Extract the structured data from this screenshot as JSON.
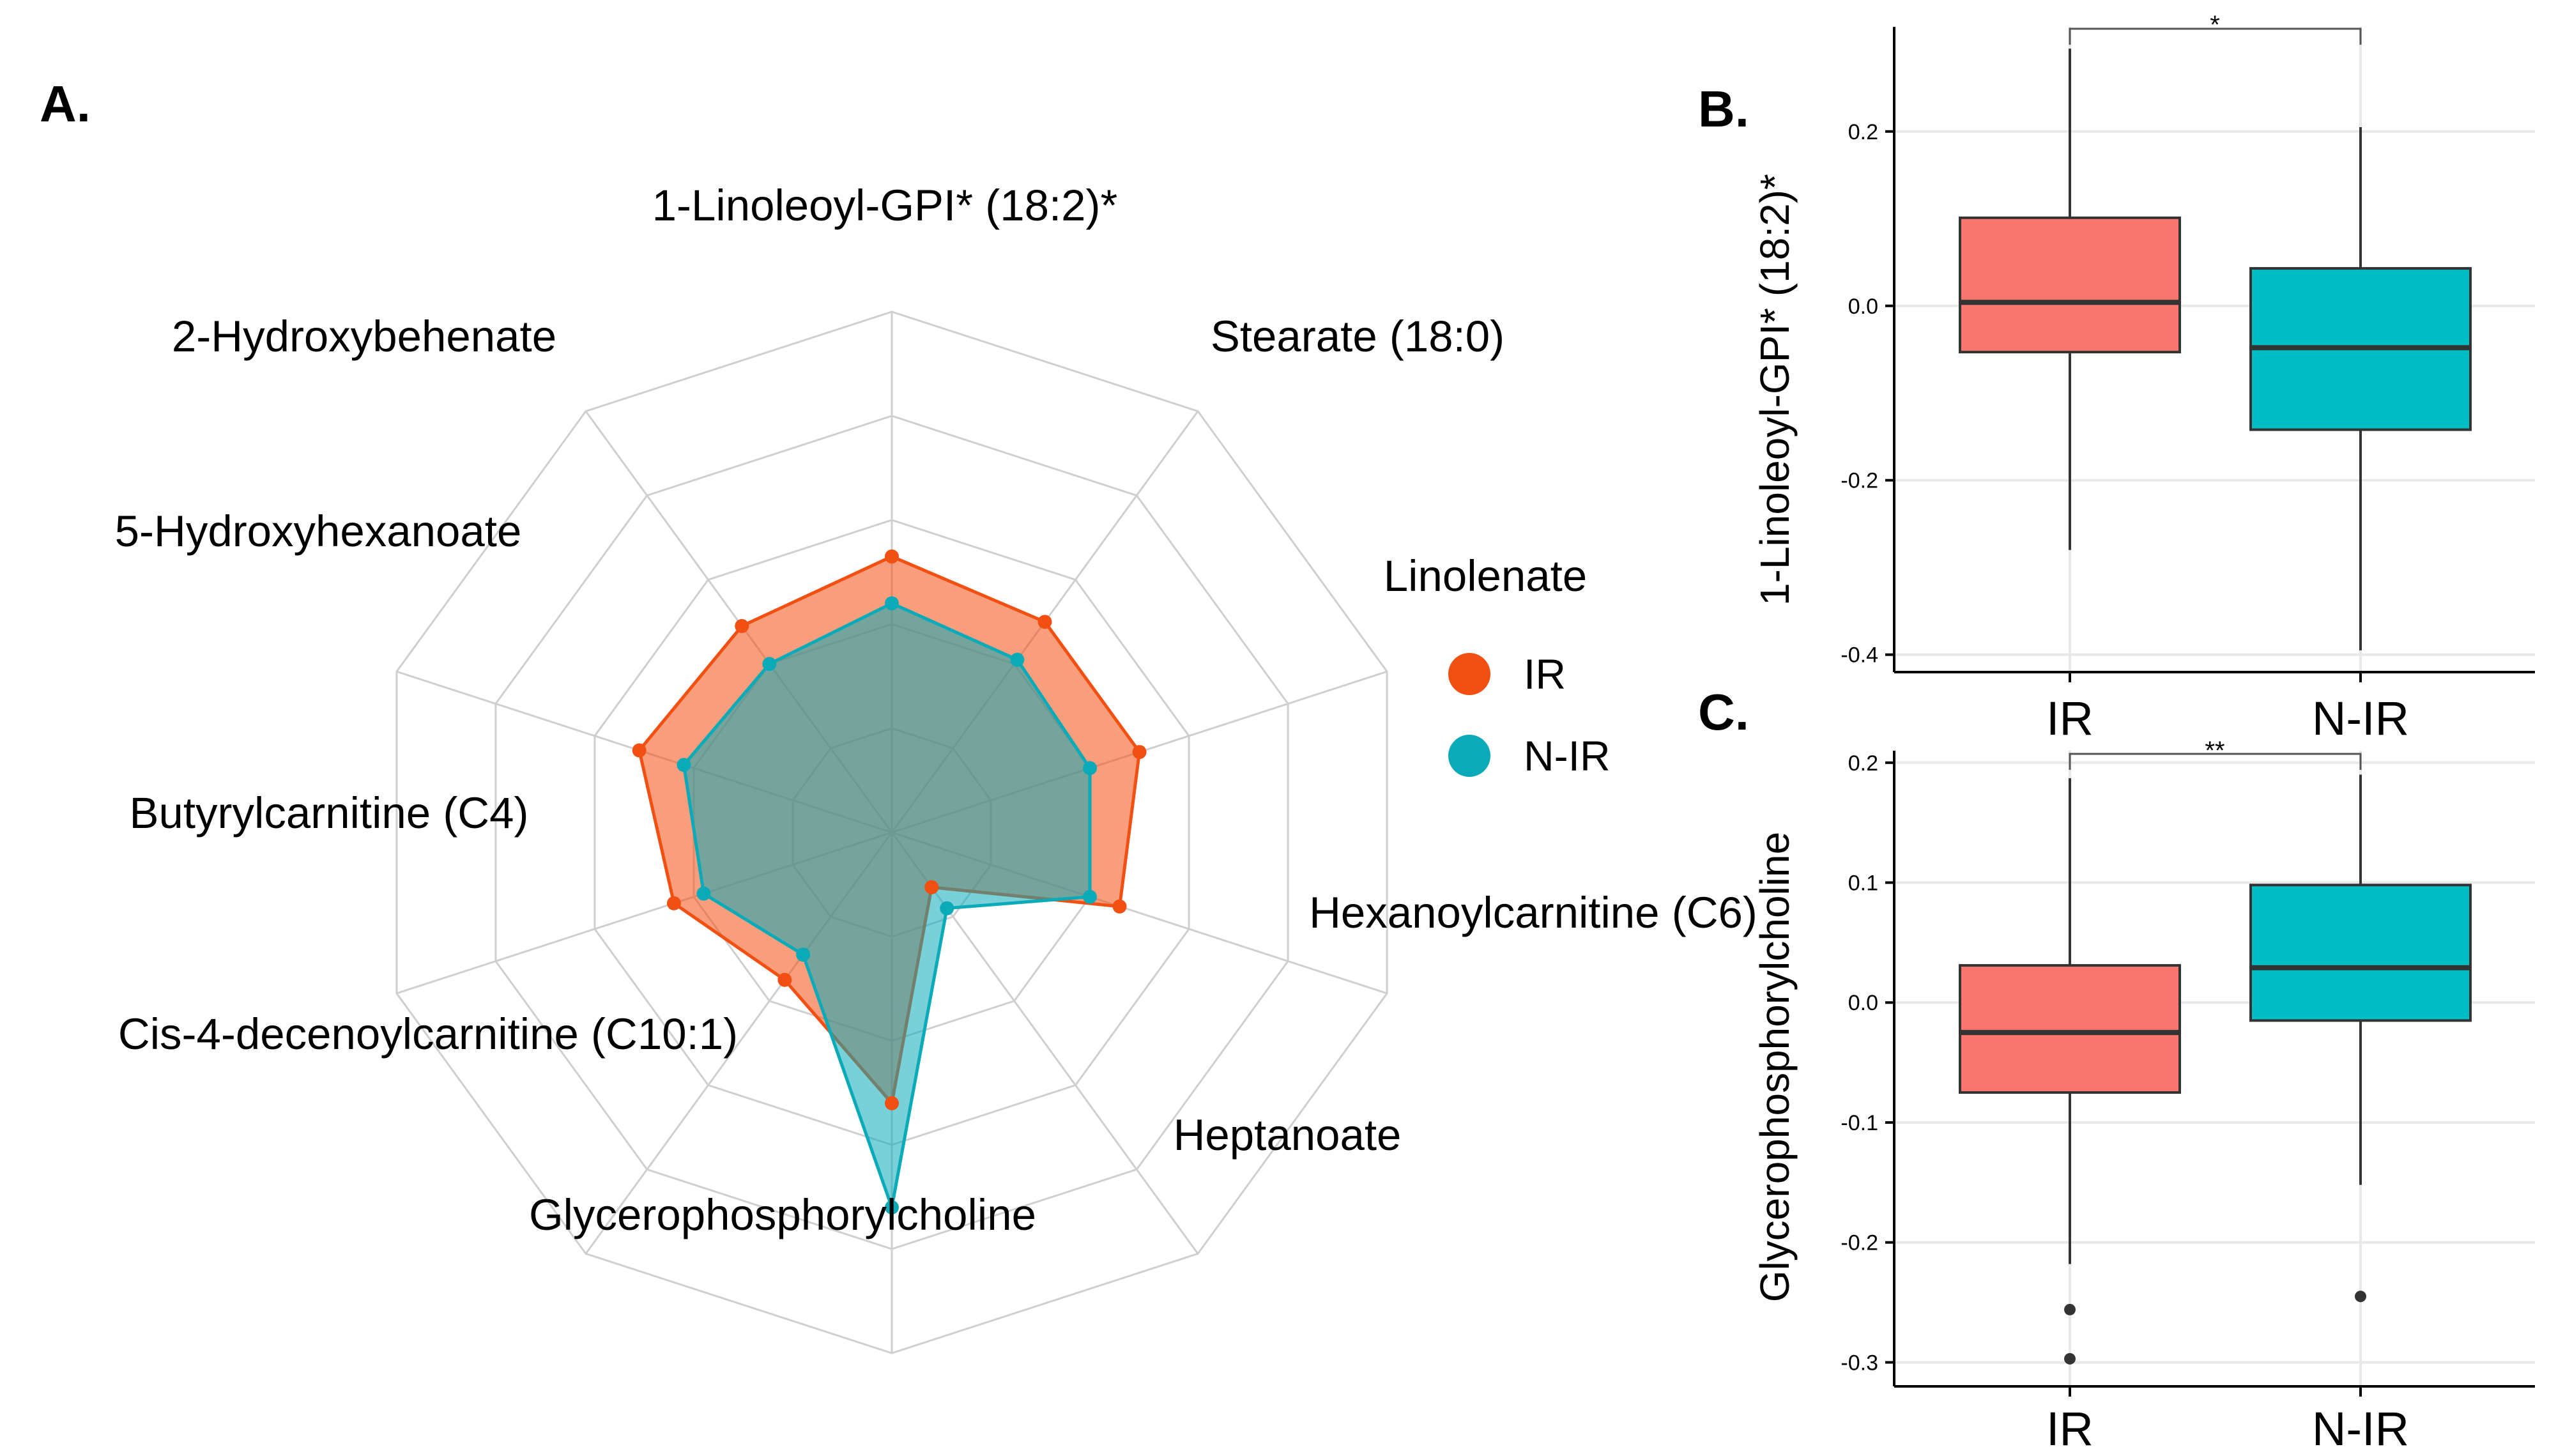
{
  "colors": {
    "IR": "#f24f12",
    "N-IR": "#0aaab8",
    "overlap": "#7aa28e",
    "box_IR": "#f8766d",
    "box_NIR": "#00bfc4",
    "grid": "#cfcfcf"
  },
  "chart_data": [
    {
      "panel": "A.",
      "type": "radar",
      "axes": [
        "1-Linoleoyl-GPI* (18:2)*",
        "Stearate (18:0)",
        "Linolenate",
        "Hexanoylcarnitine (C6)",
        "Heptanoate",
        "Glycerophosphorylcholine",
        "Cis-4-decenoylcarnitine (C10:1)",
        "Butyrylcarnitine (C4)",
        "5-Hydroxyhexanoate",
        "2-Hydroxybehenate"
      ],
      "grid_levels": 5,
      "range": [
        0,
        1
      ],
      "series": [
        {
          "name": "IR",
          "values": [
            0.53,
            0.5,
            0.5,
            0.46,
            0.13,
            0.52,
            0.35,
            0.44,
            0.51,
            0.49
          ]
        },
        {
          "name": "N-IR",
          "values": [
            0.44,
            0.41,
            0.4,
            0.4,
            0.18,
            0.72,
            0.29,
            0.38,
            0.42,
            0.4
          ]
        }
      ],
      "legend": [
        "IR",
        "N-IR"
      ],
      "legend_position": "right"
    },
    {
      "panel": "B.",
      "type": "boxplot",
      "ylabel": "1-Linoleoyl-GPI* (18:2)*",
      "categories": [
        "IR",
        "N-IR"
      ],
      "ylim": [
        -0.42,
        0.32
      ],
      "yticks": [
        0.2,
        0.0,
        -0.2,
        -0.4
      ],
      "ytick_labels": [
        "0.2",
        "0.0",
        "-0.2",
        "-0.4"
      ],
      "boxes": [
        {
          "name": "IR",
          "whisker_low": -0.28,
          "q1": -0.053,
          "median": 0.004,
          "q3": 0.101,
          "whisker_high": 0.295,
          "outliers": []
        },
        {
          "name": "N-IR",
          "whisker_low": -0.395,
          "q1": -0.142,
          "median": -0.048,
          "q3": 0.043,
          "whisker_high": 0.205,
          "outliers": []
        }
      ],
      "significance": "*",
      "grid": true
    },
    {
      "panel": "C.",
      "type": "boxplot",
      "ylabel": "Glycerophosphorylcholine",
      "categories": [
        "IR",
        "N-IR"
      ],
      "ylim": [
        -0.32,
        0.21
      ],
      "yticks": [
        0.2,
        0.1,
        0.0,
        -0.1,
        -0.2,
        -0.3
      ],
      "ytick_labels": [
        "0.2",
        "0.1",
        "0.0",
        "-0.1",
        "-0.2",
        "-0.3"
      ],
      "boxes": [
        {
          "name": "IR",
          "whisker_low": -0.218,
          "q1": -0.075,
          "median": -0.025,
          "q3": 0.031,
          "whisker_high": 0.187,
          "outliers": [
            -0.256,
            -0.297
          ]
        },
        {
          "name": "N-IR",
          "whisker_low": -0.152,
          "q1": -0.015,
          "median": 0.029,
          "q3": 0.098,
          "whisker_high": 0.19,
          "outliers": [
            -0.245
          ]
        }
      ],
      "significance": "**",
      "grid": true
    }
  ]
}
